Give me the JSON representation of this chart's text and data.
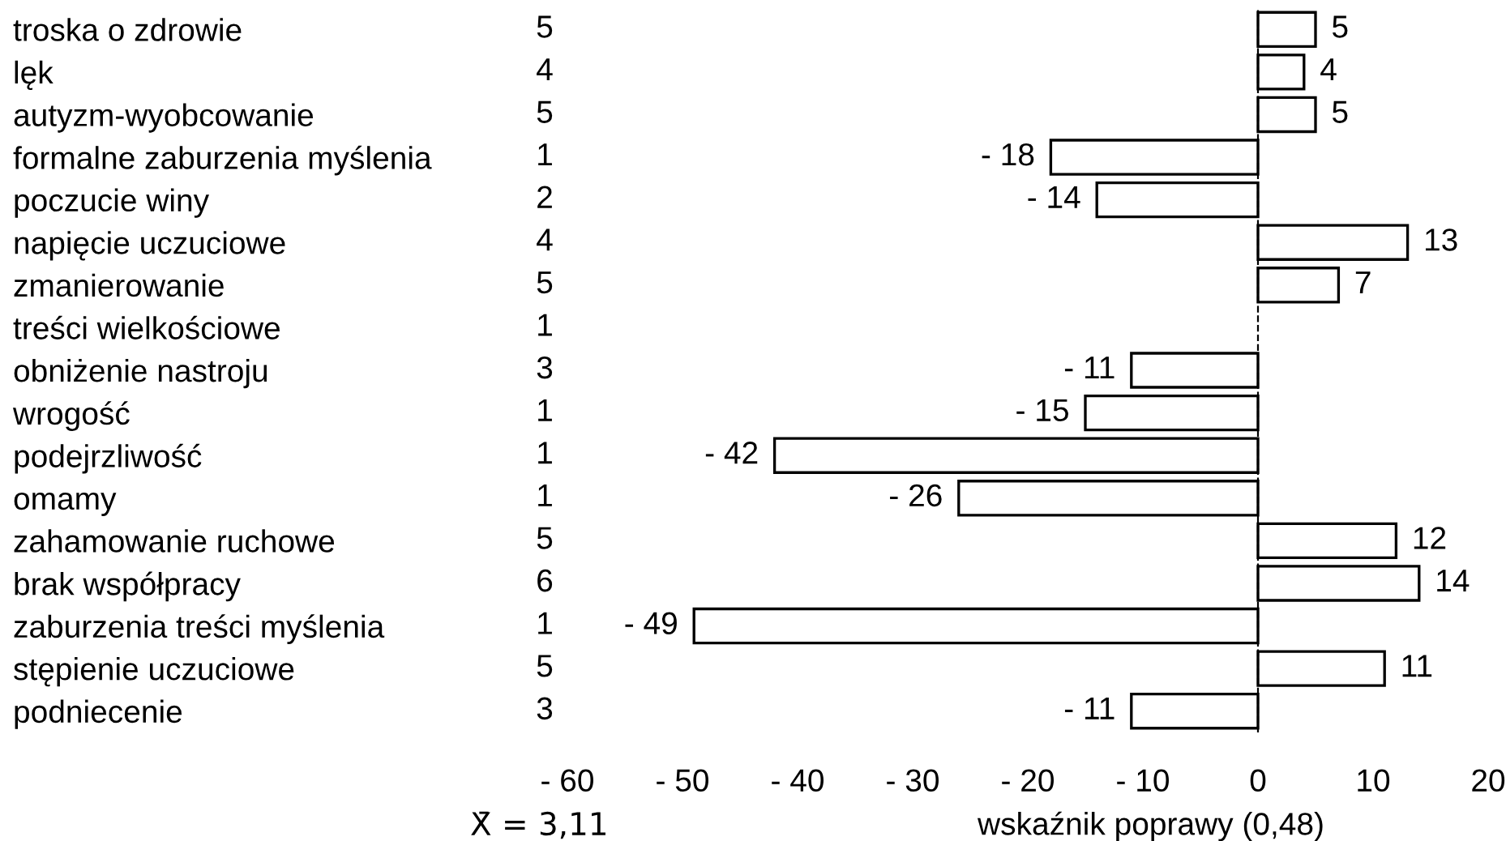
{
  "chart_data": {
    "type": "bar",
    "orientation": "horizontal",
    "categories": [
      "troska o zdrowie",
      "lęk",
      "autyzm-wyobcowanie",
      "formalne zaburzenia myślenia",
      "poczucie winy",
      "napięcie uczuciowe",
      "zmanierowanie",
      "treści wielkościowe",
      "obniżenie nastroju",
      "wrogość",
      "podejrzliwość",
      "omamy",
      "zahamowanie ruchowe",
      "brak współpracy",
      "zaburzenia treści myślenia",
      "stępienie uczuciowe",
      "podniecenie"
    ],
    "values": [
      5,
      4,
      5,
      -18,
      -14,
      13,
      7,
      null,
      -11,
      -15,
      -42,
      -26,
      12,
      14,
      -49,
      11,
      -11
    ],
    "value_labels": [
      "5",
      "4",
      "5",
      "- 18",
      "- 14",
      "13",
      "7",
      null,
      "- 11",
      "- 15",
      "- 42",
      "- 26",
      "12",
      "14",
      "- 49",
      "11",
      "- 11"
    ],
    "color": "#ffffff",
    "xlim": [
      -60,
      20
    ],
    "xticks": [
      {
        "value": -60,
        "label": "- 60"
      },
      {
        "value": -50,
        "label": "- 50"
      },
      {
        "value": -40,
        "label": "- 40"
      },
      {
        "value": -30,
        "label": "- 30"
      },
      {
        "value": -20,
        "label": "- 20"
      },
      {
        "value": -10,
        "label": "- 10"
      },
      0,
      10,
      20
    ],
    "xlabel": "wskaźnik poprawy (0,48)",
    "ref_lines": [
      {
        "axis": "x",
        "value": 0,
        "line_style": "dashed",
        "color": "#000000"
      }
    ],
    "annotations": [
      "5",
      "4",
      "5",
      "1",
      "2",
      "4",
      "5",
      "1",
      "3",
      "1",
      "1",
      "1",
      "5",
      "6",
      "1",
      "5",
      "3",
      "X̄ = 3,11"
    ],
    "grid": false
  }
}
